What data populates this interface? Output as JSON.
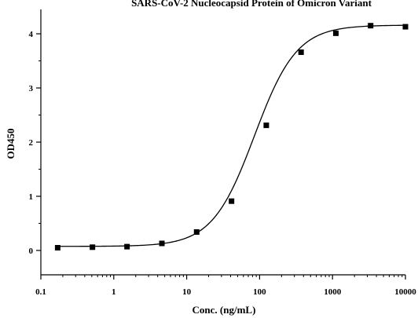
{
  "chart_data": {
    "type": "scatter",
    "title": "SARS-CoV-2 Nucleocapsid Protein of Omicron Variant",
    "xlabel": "Conc. (ng/mL)",
    "ylabel": "OD450",
    "x_scale": "log",
    "xlim": [
      0.1,
      10000
    ],
    "ylim": [
      -0.45,
      4.45
    ],
    "x_ticks": [
      "0.1",
      "1",
      "10",
      "100",
      "1000",
      "10000"
    ],
    "x_tick_values": [
      0.1,
      1,
      10,
      100,
      1000,
      10000
    ],
    "y_ticks": [
      "0",
      "1",
      "2",
      "3",
      "4"
    ],
    "y_tick_values": [
      0,
      1,
      2,
      3,
      4
    ],
    "grid": false,
    "marker": "square",
    "color": "#000000",
    "series": [
      {
        "x": [
          0.17,
          0.51,
          1.52,
          4.57,
          13.7,
          41.2,
          123.5,
          370.4,
          1111,
          3333,
          10000
        ],
        "y": [
          0.05,
          0.06,
          0.07,
          0.13,
          0.34,
          0.91,
          2.31,
          3.66,
          4.01,
          4.15,
          4.13
        ]
      }
    ],
    "fit_curve": {
      "model": "4PL",
      "bottom": 0.075,
      "top": 4.16,
      "ec50": 85,
      "hill": 1.5
    }
  }
}
